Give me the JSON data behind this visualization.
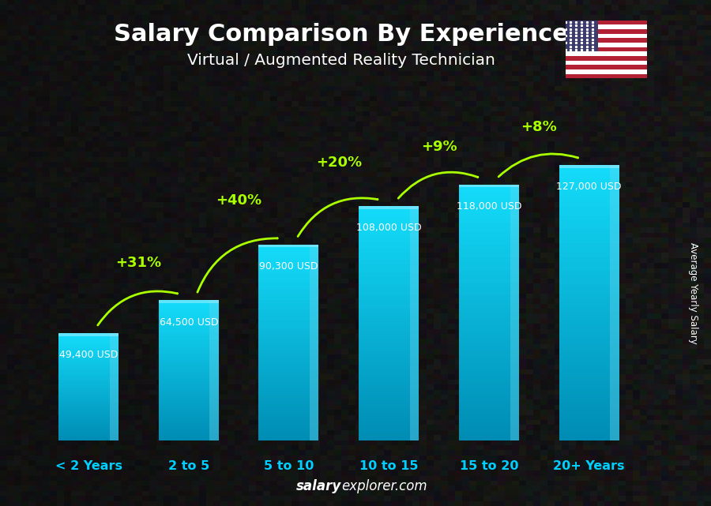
{
  "title": "Salary Comparison By Experience",
  "subtitle": "Virtual / Augmented Reality Technician",
  "categories": [
    "< 2 Years",
    "2 to 5",
    "5 to 10",
    "10 to 15",
    "15 to 20",
    "20+ Years"
  ],
  "values": [
    49400,
    64500,
    90300,
    108000,
    118000,
    127000
  ],
  "value_labels": [
    "49,400 USD",
    "64,500 USD",
    "90,300 USD",
    "108,000 USD",
    "118,000 USD",
    "127,000 USD"
  ],
  "pct_changes": [
    "+31%",
    "+40%",
    "+20%",
    "+9%",
    "+8%"
  ],
  "pct_color": "#aaff00",
  "xlabel_color": "#00cfff",
  "ylabel_text": "Average Yearly Salary",
  "watermark_bold": "salary",
  "watermark_rest": "explorer.com",
  "figsize": [
    9.0,
    6.41
  ],
  "dpi": 100,
  "bar_width": 0.6,
  "max_val": 140000,
  "bg_color": "#1e1e1e"
}
